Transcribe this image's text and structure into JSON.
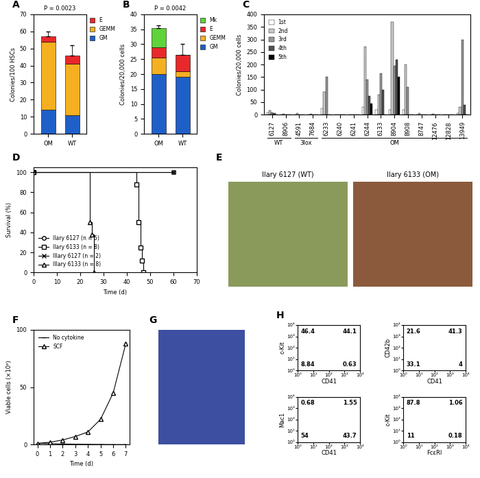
{
  "chart_data": [
    {
      "type": "stacked_bar",
      "title": "A",
      "ylabel": "Colonies/100 HSCs",
      "categories": [
        "OM",
        "WT"
      ],
      "stacked": true,
      "series": [
        {
          "name": "GM",
          "color": "#1f5fc8",
          "values": [
            14,
            11
          ]
        },
        {
          "name": "GEMM",
          "color": "#f5b021",
          "values": [
            40,
            30
          ]
        },
        {
          "name": "E",
          "color": "#e8282b",
          "values": [
            3,
            5
          ]
        }
      ],
      "errors": [
        3,
        6
      ],
      "ylim": [
        0,
        70
      ],
      "yticks": [
        0,
        10,
        20,
        30,
        40,
        50,
        60,
        70
      ],
      "annotations": [
        "P = 0.0023"
      ],
      "legend": "upper left"
    },
    {
      "type": "stacked_bar",
      "title": "B",
      "ylabel": "Colonies/20,000 cells",
      "categories": [
        "OM",
        "WT"
      ],
      "stacked": true,
      "series": [
        {
          "name": "GM",
          "color": "#1f5fc8",
          "values": [
            20,
            19
          ]
        },
        {
          "name": "GEMM",
          "color": "#f5b021",
          "values": [
            5.5,
            2
          ]
        },
        {
          "name": "E",
          "color": "#e8282b",
          "values": [
            3.5,
            5.5
          ]
        },
        {
          "name": "Mk",
          "color": "#5fd33a",
          "values": [
            6.5,
            0
          ]
        }
      ],
      "errors": [
        0.8,
        3.5
      ],
      "ylim": [
        0,
        40
      ],
      "yticks": [
        0,
        5,
        10,
        15,
        20,
        25,
        30,
        35,
        40
      ],
      "annotations": [
        "P = 0.0042"
      ],
      "legend": "upper left"
    },
    {
      "type": "bar",
      "title": "C",
      "ylabel": "Colonies/20,000 cells",
      "categories": [
        "6127",
        "8906",
        "4591",
        "7684",
        "6233",
        "6240",
        "6241",
        "6244",
        "6133",
        "8904",
        "8908",
        "8747",
        "12476",
        "12828",
        "13949"
      ],
      "series": [
        {
          "name": "1st",
          "color": "#ffffff",
          "values": [
            8,
            2,
            2,
            1,
            25,
            0,
            0,
            30,
            20,
            20,
            20,
            0,
            0,
            0,
            5
          ]
        },
        {
          "name": "2nd",
          "color": "#c8c8c8",
          "values": [
            18,
            3,
            5,
            3,
            90,
            0,
            0,
            270,
            80,
            370,
            200,
            5,
            3,
            0,
            30
          ]
        },
        {
          "name": "3rd",
          "color": "#969696",
          "values": [
            10,
            0,
            0,
            0,
            150,
            0,
            0,
            140,
            165,
            195,
            110,
            0,
            0,
            0,
            300
          ]
        },
        {
          "name": "4th",
          "color": "#505050",
          "values": [
            5,
            0,
            0,
            0,
            0,
            0,
            0,
            75,
            100,
            220,
            0,
            0,
            0,
            0,
            40
          ]
        },
        {
          "name": "5th",
          "color": "#000000",
          "values": [
            0,
            0,
            0,
            0,
            0,
            0,
            0,
            45,
            0,
            150,
            0,
            0,
            0,
            0,
            0
          ]
        }
      ],
      "groups": [
        {
          "label": "WT",
          "categories": [
            "6127",
            "8906"
          ]
        },
        {
          "label": "3lox",
          "categories": [
            "4591",
            "7684"
          ]
        },
        {
          "label": "OM",
          "categories": [
            "6233",
            "6240",
            "6241",
            "6244",
            "6133",
            "8904",
            "8908",
            "8747",
            "12476",
            "12828",
            "13949"
          ]
        }
      ],
      "ylim": [
        0,
        400
      ],
      "yticks": [
        0,
        50,
        100,
        150,
        200,
        250,
        300,
        350,
        400
      ],
      "legend": "upper left"
    },
    {
      "type": "step",
      "title": "D",
      "xlabel": "Time (d)",
      "ylabel": "Survival (%)",
      "series": [
        {
          "name": "IIary 6127 (n = 5)",
          "marker": "circle",
          "color": "#000000",
          "x": [
            0,
            60
          ],
          "values": [
            100,
            100
          ]
        },
        {
          "name": "IIary 6133 (n = 8)",
          "marker": "square",
          "color": "#000000",
          "x": [
            0,
            44,
            45,
            46,
            46.5,
            47
          ],
          "values": [
            100,
            88,
            50,
            25,
            12,
            0
          ]
        },
        {
          "name": "IIIary 6127 (n = 2)",
          "marker": "x",
          "color": "#000000",
          "x": [
            0,
            60
          ],
          "values": [
            100,
            100
          ]
        },
        {
          "name": "IIIary 6133 (n = 8)",
          "marker": "triangle",
          "color": "#000000",
          "x": [
            0,
            24,
            25,
            26
          ],
          "values": [
            100,
            50,
            38,
            0
          ]
        }
      ],
      "xlim": [
        0,
        70
      ],
      "xticks": [
        0,
        10,
        20,
        30,
        40,
        50,
        60,
        70
      ],
      "ylim": [
        0,
        105
      ],
      "yticks": [
        0,
        20,
        40,
        60,
        80,
        100
      ],
      "legend": "lower left"
    },
    {
      "type": "image",
      "title": "E",
      "annotations": [
        "IIary 6127 (WT)",
        "IIary 6133 (OM)"
      ]
    },
    {
      "type": "line",
      "title": "F",
      "xlabel": "Time (d)",
      "ylabel": "Viable cells (×10⁶)",
      "x": [
        0,
        1,
        2,
        3,
        4,
        5,
        6,
        7
      ],
      "series": [
        {
          "name": "No cytokine",
          "marker": "dash",
          "color": "#000000",
          "values": [
            1,
            0.8,
            0.5,
            0.3,
            0.2,
            0.1,
            0,
            0
          ]
        },
        {
          "name": "SCF",
          "marker": "triangle",
          "color": "#000000",
          "values": [
            1,
            2,
            4,
            7,
            11,
            22,
            45,
            88
          ]
        }
      ],
      "xlim": [
        -0.3,
        7.3
      ],
      "xticks": [
        0,
        1,
        2,
        3,
        4,
        5,
        6,
        7
      ],
      "ylim": [
        0,
        100
      ],
      "yticks": [
        0,
        50,
        100
      ],
      "legend": "upper left"
    },
    {
      "type": "image",
      "title": "G"
    },
    {
      "type": "flow",
      "title": "H",
      "log": true,
      "xlim": [
        1,
        10000
      ],
      "ylim": [
        1,
        10000
      ],
      "xticks": [
        {
          "value": 1,
          "label": "10⁰"
        },
        {
          "value": 10,
          "label": "10¹"
        },
        {
          "value": 100,
          "label": "10²"
        },
        {
          "value": 1000,
          "label": "10³"
        },
        {
          "value": 10000,
          "label": "10⁴"
        }
      ],
      "yticks": [
        {
          "value": 1,
          "label": "10⁰"
        },
        {
          "value": 10,
          "label": "10¹"
        },
        {
          "value": 100,
          "label": "10²"
        },
        {
          "value": 1000,
          "label": "10³"
        },
        {
          "value": 10000,
          "label": "10⁴"
        }
      ],
      "panels": [
        {
          "xlabel": "CD41",
          "ylabel": "c-Kit",
          "values": [
            46.4,
            44.1,
            8.84,
            0.63
          ]
        },
        {
          "xlabel": "CD41",
          "ylabel": "CD42b",
          "values": [
            21.6,
            41.3,
            33.1,
            4
          ]
        },
        {
          "xlabel": "CD41",
          "ylabel": "Mac1",
          "values": [
            0.68,
            1.55,
            54,
            43.7
          ]
        },
        {
          "xlabel": "FcεRI",
          "ylabel": "c-Kit",
          "values": [
            87.8,
            1.06,
            11,
            0.18
          ]
        }
      ]
    }
  ]
}
